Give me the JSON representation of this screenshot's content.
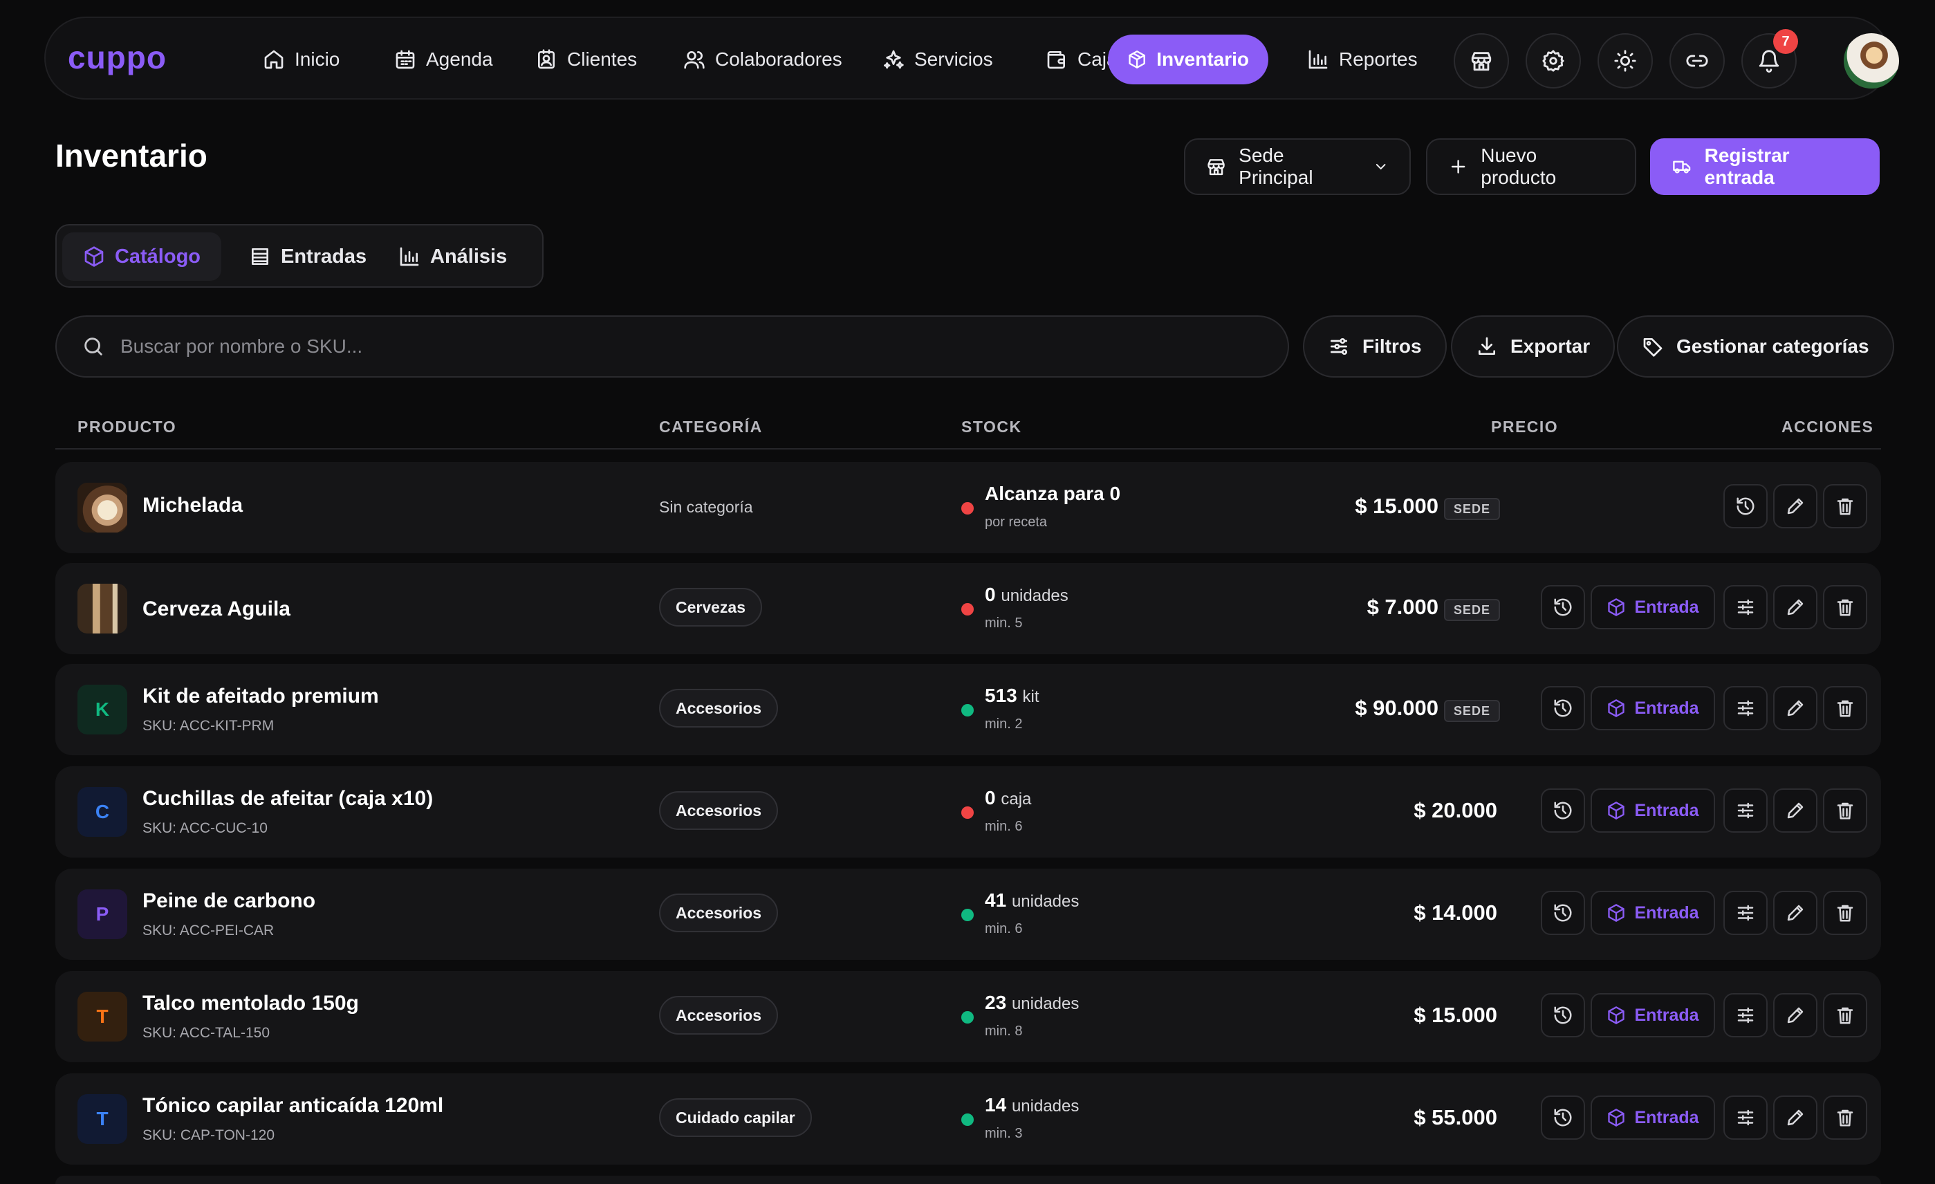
{
  "app": {
    "logo": "cuppo"
  },
  "nav": {
    "items": [
      {
        "label": "Inicio",
        "icon": "home-icon"
      },
      {
        "label": "Agenda",
        "icon": "calendar-icon"
      },
      {
        "label": "Clientes",
        "icon": "contact-card-icon"
      },
      {
        "label": "Colaboradores",
        "icon": "users-icon"
      },
      {
        "label": "Servicios",
        "icon": "sparkles-icon"
      },
      {
        "label": "Caja",
        "icon": "wallet-icon"
      },
      {
        "label": "Inventario",
        "icon": "package-icon",
        "active": true
      },
      {
        "label": "Reportes",
        "icon": "bar-chart-icon"
      }
    ],
    "notifications_count": "7"
  },
  "header": {
    "title": "Inventario",
    "branch_select": "Sede Principal",
    "new_product_label": "Nuevo producto",
    "register_entry_label": "Registrar entrada"
  },
  "tabs": [
    {
      "label": "Catálogo",
      "active": true
    },
    {
      "label": "Entradas"
    },
    {
      "label": "Análisis"
    }
  ],
  "search": {
    "placeholder": "Buscar por nombre o SKU..."
  },
  "toolbar": {
    "filters_label": "Filtros",
    "export_label": "Exportar",
    "manage_categories_label": "Gestionar categorías"
  },
  "table": {
    "columns": [
      "PRODUCTO",
      "CATEGORÍA",
      "STOCK",
      "PRECIO",
      "ACCIONES"
    ],
    "rows": [
      {
        "name": "Michelada",
        "sku": "",
        "category": "Sin categoría",
        "stock_value": "Alcanza para 0",
        "stock_unit": "",
        "stock_sub": "por receta",
        "status": "out",
        "price": "$ 15.000",
        "sede": "SEDE"
      },
      {
        "name": "Cerveza Aguila",
        "sku": "",
        "category": "Cervezas",
        "stock_value": "0",
        "stock_unit": "unidades",
        "stock_sub": "min. 5",
        "status": "out",
        "price": "$ 7.000",
        "sede": "SEDE"
      },
      {
        "name": "Kit de afeitado premium",
        "sku": "SKU: ACC-KIT-PRM",
        "category": "Accesorios",
        "stock_value": "513",
        "stock_unit": "kit",
        "stock_sub": "min. 2",
        "status": "ok",
        "price": "$ 90.000",
        "sede": "SEDE",
        "initial": "K"
      },
      {
        "name": "Cuchillas de afeitar (caja x10)",
        "sku": "SKU: ACC-CUC-10",
        "category": "Accesorios",
        "stock_value": "0",
        "stock_unit": "caja",
        "stock_sub": "min. 6",
        "status": "out",
        "price": "$ 20.000",
        "sede": "",
        "initial": "C"
      },
      {
        "name": "Peine de carbono",
        "sku": "SKU: ACC-PEI-CAR",
        "category": "Accesorios",
        "stock_value": "41",
        "stock_unit": "unidades",
        "stock_sub": "min. 6",
        "status": "ok",
        "price": "$ 14.000",
        "sede": "",
        "initial": "P"
      },
      {
        "name": "Talco mentolado 150g",
        "sku": "SKU: ACC-TAL-150",
        "category": "Accesorios",
        "stock_value": "23",
        "stock_unit": "unidades",
        "stock_sub": "min. 8",
        "status": "ok",
        "price": "$ 15.000",
        "sede": "",
        "initial": "T"
      },
      {
        "name": "Tónico capilar anticaída 120ml",
        "sku": "SKU: CAP-TON-120",
        "category": "Cuidado capilar",
        "stock_value": "14",
        "stock_unit": "unidades",
        "stock_sub": "min. 3",
        "status": "ok",
        "price": "$ 55.000",
        "sede": "",
        "initial": "T"
      }
    ],
    "entrada_label": "Entrada"
  },
  "colors": {
    "accent": "#8b5cf6",
    "status_out": "#ef4444",
    "status_ok": "#10b981"
  }
}
